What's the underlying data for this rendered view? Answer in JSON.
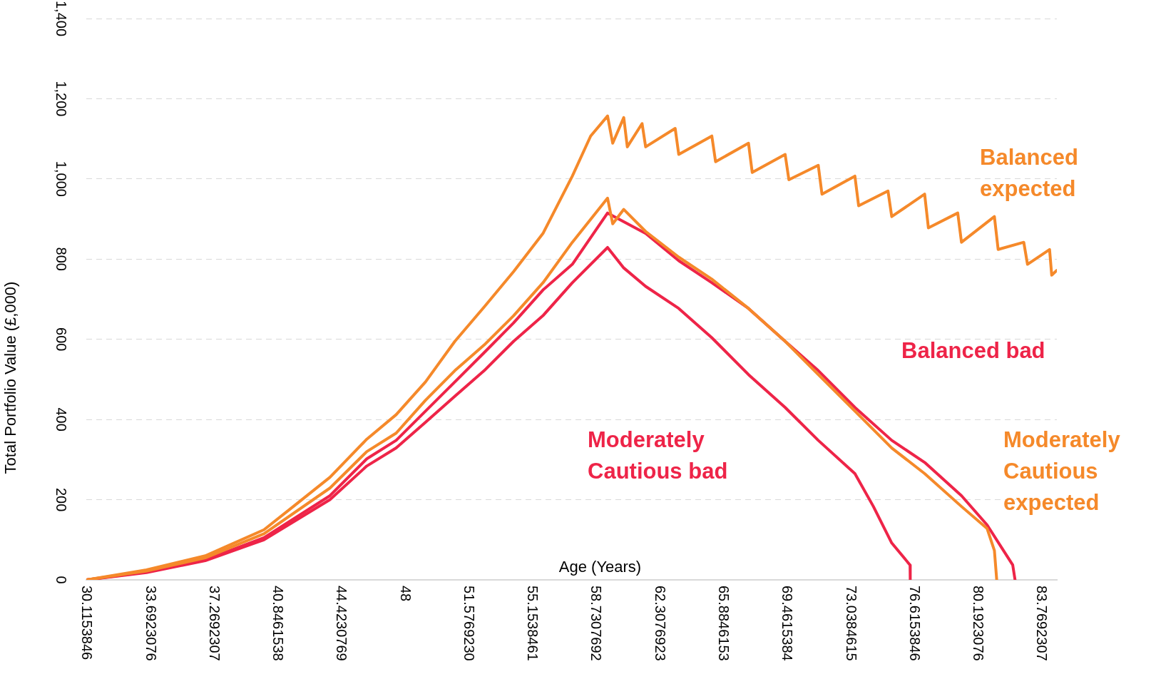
{
  "chart_data": {
    "type": "line",
    "xlabel": "Age (Years)",
    "ylabel": "Total Portfolio Value (£,000)",
    "xlim": [
      30.1153846,
      84.66
    ],
    "ylim": [
      0,
      1400
    ],
    "xticks": [
      {
        "value": 30.1153846,
        "label": "30.1153846"
      },
      {
        "value": 33.6923076,
        "label": "33.6923076"
      },
      {
        "value": 37.2692307,
        "label": "37.2692307"
      },
      {
        "value": 40.8461538,
        "label": "40.8461538"
      },
      {
        "value": 44.4230769,
        "label": "44.4230769"
      },
      48,
      {
        "value": 51.576923,
        "label": "51.5769230"
      },
      {
        "value": 55.1538461,
        "label": "55.1538461"
      },
      {
        "value": 58.7307692,
        "label": "58.7307692"
      },
      {
        "value": 62.3076923,
        "label": "62.3076923"
      },
      {
        "value": 65.8846153,
        "label": "65.8846153"
      },
      {
        "value": 69.4615384,
        "label": "69.4615384"
      },
      {
        "value": 73.0384615,
        "label": "73.0384615"
      },
      {
        "value": 76.6153846,
        "label": "76.6153846"
      },
      {
        "value": 80.1923076,
        "label": "80.1923076"
      },
      {
        "value": 83.7692307,
        "label": "83.7692307"
      }
    ],
    "yticks": [
      0,
      200,
      400,
      600,
      800,
      {
        "value": 1000,
        "label": "1,000"
      },
      {
        "value": 1200,
        "label": "1,200"
      },
      {
        "value": 1400,
        "label": "1,400"
      }
    ],
    "grid": "y",
    "marker": "none",
    "series": [
      {
        "name": "Balanced expected",
        "color": "#f5892a",
        "x": [
          30.12,
          33.5,
          36.8,
          40.1,
          41.75,
          43.81,
          45.88,
          47.53,
          49.18,
          50.83,
          52.48,
          54.13,
          55.78,
          57.43,
          58.46,
          59.41,
          59.7,
          60.32,
          60.52,
          61.35,
          61.55,
          63.21,
          63.41,
          65.27,
          65.48,
          67.33,
          67.54,
          69.39,
          69.6,
          71.25,
          71.46,
          73.31,
          73.52,
          75.17,
          75.38,
          77.23,
          77.44,
          79.09,
          79.3,
          81.15,
          81.36,
          82.8,
          83.01,
          84.25,
          84.37,
          84.66
        ],
        "values": [
          0,
          25,
          60,
          125,
          183,
          256,
          351,
          412,
          494,
          595,
          681,
          769,
          864,
          1007,
          1107,
          1157,
          1089,
          1153,
          1080,
          1138,
          1080,
          1126,
          1061,
          1107,
          1043,
          1089,
          1016,
          1061,
          998,
          1034,
          962,
          1007,
          933,
          970,
          906,
          962,
          878,
          915,
          842,
          906,
          824,
          842,
          787,
          824,
          760,
          772
        ]
      },
      {
        "name": "Moderately Cautious expected",
        "color": "#f5892a",
        "x": [
          30.12,
          33.5,
          36.8,
          40.1,
          43.81,
          45.88,
          47.53,
          49.18,
          50.83,
          52.48,
          54.13,
          55.78,
          57.43,
          59.41,
          59.7,
          60.32,
          61.55,
          63.41,
          65.27,
          67.33,
          69.39,
          71.25,
          73.31,
          75.38,
          77.23,
          79.3,
          80.74,
          81.15,
          81.28
        ],
        "values": [
          0,
          22,
          55,
          115,
          229,
          320,
          366,
          448,
          522,
          586,
          659,
          741,
          842,
          952,
          888,
          924,
          869,
          805,
          750,
          677,
          595,
          512,
          421,
          329,
          265,
          183,
          128,
          73,
          0
        ]
      },
      {
        "name": "Balanced bad",
        "color": "#ee2448",
        "x": [
          30.12,
          33.5,
          36.8,
          40.1,
          43.81,
          45.88,
          47.53,
          49.18,
          50.83,
          52.48,
          54.13,
          55.78,
          57.43,
          59.41,
          61.55,
          63.41,
          65.27,
          67.33,
          69.39,
          71.25,
          73.31,
          75.38,
          77.23,
          79.3,
          80.74,
          82.18,
          82.31
        ],
        "values": [
          0,
          20,
          50,
          105,
          210,
          302,
          348,
          421,
          494,
          567,
          641,
          723,
          787,
          915,
          864,
          796,
          741,
          677,
          595,
          522,
          430,
          348,
          293,
          210,
          137,
          37,
          0
        ]
      },
      {
        "name": "Moderately Cautious bad",
        "color": "#ee2448",
        "x": [
          30.12,
          33.5,
          36.8,
          40.1,
          43.81,
          45.88,
          47.53,
          49.18,
          50.83,
          52.48,
          54.13,
          55.78,
          57.43,
          59.41,
          60.32,
          61.55,
          63.41,
          65.27,
          67.33,
          69.39,
          71.25,
          73.31,
          74.35,
          75.38,
          76.41,
          76.42
        ],
        "values": [
          0,
          18,
          48,
          100,
          200,
          284,
          329,
          393,
          458,
          522,
          595,
          659,
          741,
          829,
          778,
          732,
          677,
          604,
          512,
          430,
          348,
          265,
          183,
          92,
          37,
          0
        ]
      }
    ]
  }
}
